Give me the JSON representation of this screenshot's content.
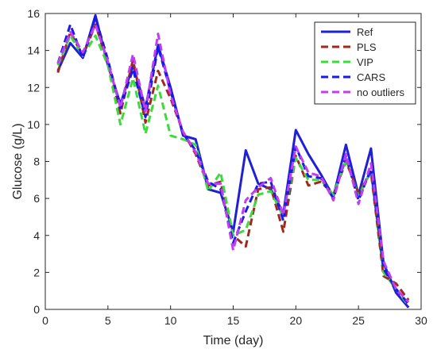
{
  "chart_data": {
    "type": "line",
    "title": "",
    "xlabel": "Time (day)",
    "ylabel": "Glucose (g/L)",
    "xlim": [
      0,
      30
    ],
    "ylim": [
      0,
      16
    ],
    "xticks": [
      0,
      5,
      10,
      15,
      20,
      25,
      30
    ],
    "yticks": [
      0,
      2,
      4,
      6,
      8,
      10,
      12,
      14,
      16
    ],
    "grid": false,
    "legend_position": "top-right",
    "x": [
      1,
      2,
      3,
      4,
      5,
      6,
      7,
      8,
      9,
      10,
      11,
      12,
      13,
      14,
      15,
      16,
      17,
      18,
      19,
      20,
      21,
      22,
      23,
      24,
      25,
      26,
      27,
      28,
      29
    ],
    "series": [
      {
        "name": "Ref",
        "color": "#1f1fd6",
        "style": "solid",
        "values": [
          12.9,
          14.4,
          13.6,
          15.9,
          13.2,
          11.1,
          13.2,
          10.9,
          14.3,
          12.0,
          9.4,
          9.2,
          6.5,
          6.3,
          4.2,
          8.6,
          6.8,
          6.5,
          5.2,
          9.7,
          8.4,
          7.3,
          6.1,
          8.9,
          6.2,
          8.7,
          2.5,
          0.9,
          0.1
        ]
      },
      {
        "name": "PLS",
        "color": "#a0281e",
        "style": "dashed",
        "values": [
          12.8,
          15.0,
          13.7,
          15.4,
          13.3,
          10.6,
          13.5,
          10.1,
          12.9,
          11.4,
          9.6,
          8.4,
          6.7,
          6.9,
          4.0,
          3.4,
          6.5,
          6.6,
          4.2,
          8.3,
          6.7,
          6.9,
          6.2,
          8.0,
          6.3,
          7.4,
          1.8,
          1.4,
          0.5
        ]
      },
      {
        "name": "VIP",
        "color": "#3bdb3b",
        "style": "dashed",
        "values": [
          13.2,
          14.8,
          13.7,
          14.8,
          13.2,
          10.0,
          12.5,
          9.5,
          12.1,
          9.4,
          9.2,
          8.9,
          6.4,
          7.4,
          4.0,
          4.3,
          6.2,
          6.4,
          5.0,
          8.2,
          7.0,
          7.0,
          6.2,
          8.1,
          6.1,
          7.5,
          2.0,
          1.1,
          0.2
        ]
      },
      {
        "name": "CARS",
        "color": "#1a1ae6",
        "style": "dashed",
        "values": [
          13.3,
          15.4,
          13.6,
          15.8,
          13.5,
          10.9,
          13.0,
          10.4,
          14.2,
          11.8,
          9.5,
          8.6,
          6.9,
          6.5,
          3.6,
          5.3,
          6.8,
          6.9,
          4.8,
          8.8,
          7.2,
          7.1,
          6.0,
          8.3,
          5.9,
          7.6,
          2.2,
          1.1,
          0.3
        ]
      },
      {
        "name": "no outliers",
        "color": "#c23bf5",
        "style": "dashed",
        "values": [
          13.3,
          15.0,
          13.9,
          15.4,
          13.4,
          10.9,
          13.8,
          10.7,
          14.9,
          11.6,
          9.6,
          8.5,
          6.8,
          6.8,
          3.2,
          5.9,
          6.6,
          7.1,
          5.1,
          8.8,
          7.4,
          7.2,
          5.9,
          8.4,
          5.7,
          7.9,
          2.6,
          1.1,
          0.4
        ]
      }
    ]
  }
}
